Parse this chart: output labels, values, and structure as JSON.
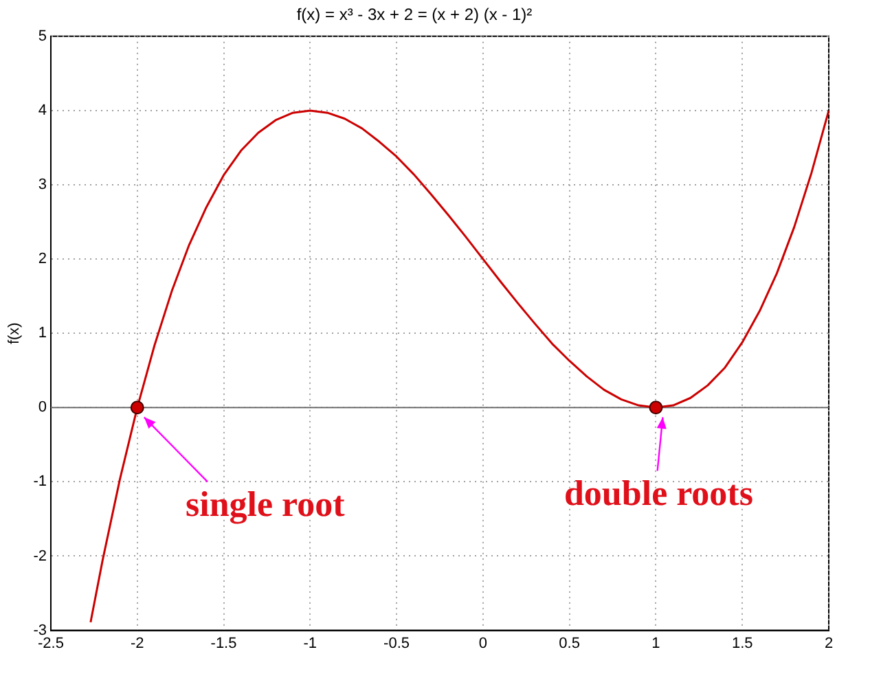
{
  "chart_data": {
    "type": "line",
    "title": "f(x) = x³ - 3x + 2 = (x + 2) (x - 1)²",
    "ylabel": "f(x)",
    "xlim": [
      -2.5,
      2
    ],
    "xticks": [
      -2.5,
      -2,
      -1.5,
      -1,
      -0.5,
      0,
      0.5,
      1,
      1.5,
      2
    ],
    "ylim": [
      -3,
      5
    ],
    "yticks": [
      -3,
      -2,
      -1,
      0,
      1,
      2,
      3,
      4,
      5
    ],
    "grid": true,
    "legend": false,
    "series": [
      {
        "color": "#cc0000",
        "marker": "none",
        "x": [
          -2.27,
          -2.2,
          -2.1,
          -2,
          -1.9,
          -1.8,
          -1.7,
          -1.6,
          -1.5,
          -1.4,
          -1.3,
          -1.2,
          -1.1,
          -1,
          -0.9,
          -0.8,
          -0.7,
          -0.6,
          -0.5,
          -0.4,
          -0.3,
          -0.2,
          -0.1,
          0,
          0.1,
          0.2,
          0.3,
          0.4,
          0.5,
          0.6,
          0.7,
          0.8,
          0.9,
          1,
          1.1,
          1.2,
          1.3,
          1.4,
          1.5,
          1.6,
          1.7,
          1.8,
          1.9,
          2
        ],
        "values": [
          -2.89,
          -2.05,
          -0.96,
          0,
          0.84,
          1.57,
          2.19,
          2.7,
          3.13,
          3.46,
          3.7,
          3.87,
          3.97,
          4,
          3.97,
          3.89,
          3.76,
          3.58,
          3.38,
          3.14,
          2.87,
          2.59,
          2.3,
          2,
          1.7,
          1.41,
          1.13,
          0.86,
          0.63,
          0.42,
          0.24,
          0.11,
          0.03,
          0,
          0.03,
          0.13,
          0.3,
          0.54,
          0.88,
          1.3,
          1.81,
          2.43,
          3.16,
          4
        ]
      },
      {
        "type": "scatter",
        "color": "#cc0000",
        "marker": "circle",
        "x": [
          -2,
          1
        ],
        "values": [
          0,
          0
        ]
      }
    ],
    "ref_lines": [
      {
        "axis": "y",
        "value": 0,
        "color": "#707070"
      }
    ],
    "annotations": [
      {
        "text": "single root",
        "x": -2,
        "y": 0
      },
      {
        "text": "double roots",
        "x": 1,
        "y": 0
      }
    ]
  }
}
